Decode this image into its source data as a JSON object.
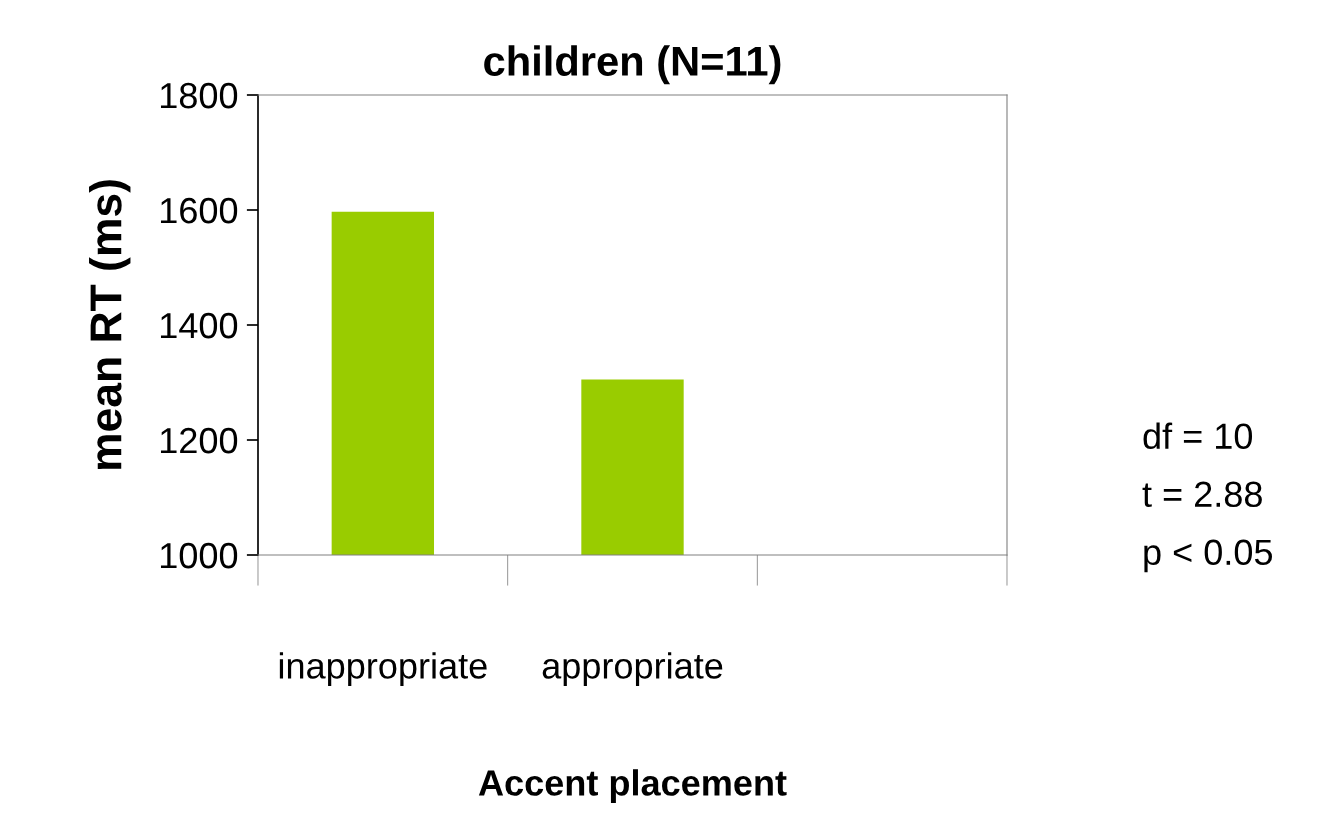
{
  "chart_data": {
    "type": "bar",
    "title": "children (N=11)",
    "xlabel": "Accent placement",
    "ylabel": "mean RT (ms)",
    "categories": [
      "inappropriate",
      "appropriate",
      null
    ],
    "values": [
      1597,
      1305,
      null
    ],
    "color": "#99cc00",
    "ylim": [
      1000,
      1800
    ],
    "yticks": [
      1000,
      1200,
      1400,
      1600,
      1800
    ],
    "grid": false,
    "legend": false,
    "annotations": [
      "df = 10",
      "t = 2.88",
      "p < 0.05"
    ]
  }
}
